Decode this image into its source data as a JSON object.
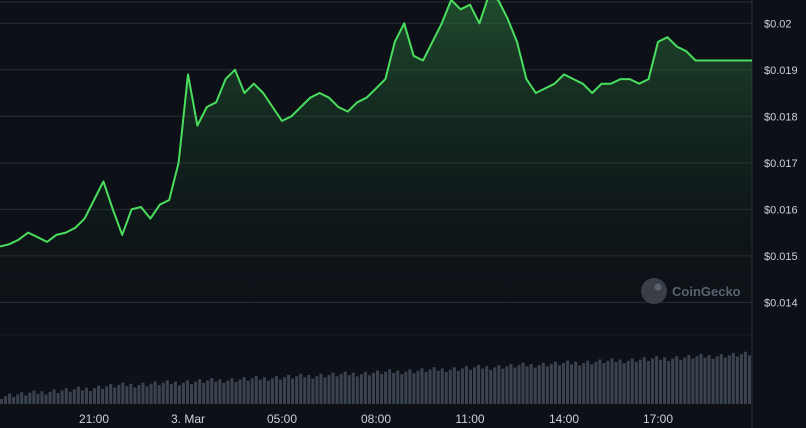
{
  "chart_data": {
    "type": "line",
    "title": "",
    "xlabel": "",
    "ylabel": "",
    "x_ticks": [
      "21:00",
      "3. Mar",
      "05:00",
      "08:00",
      "11:00",
      "14:00",
      "17:00"
    ],
    "y_ticks": [
      0.014,
      0.015,
      0.016,
      0.017,
      0.018,
      0.019,
      0.02
    ],
    "y_tick_labels": [
      "$0.014",
      "$0.015",
      "$0.016",
      "$0.017",
      "$0.018",
      "$0.019",
      "$0.02"
    ],
    "ylim": [
      0.01375,
      0.0205
    ],
    "xlim": [
      0,
      24
    ],
    "grid": true,
    "legend": "none",
    "series": [
      {
        "x": [
          0,
          0.3,
          0.6,
          0.9,
          1.2,
          1.5,
          1.8,
          2.1,
          2.4,
          2.7,
          3.0,
          3.3,
          3.6,
          3.9,
          4.2,
          4.5,
          4.8,
          5.1,
          5.4,
          5.7,
          6.0,
          6.3,
          6.6,
          6.9,
          7.2,
          7.5,
          7.8,
          8.1,
          8.4,
          8.7,
          9.0,
          9.3,
          9.6,
          9.9,
          10.2,
          10.5,
          10.8,
          11.1,
          11.4,
          11.7,
          12.0,
          12.3,
          12.6,
          12.9,
          13.2,
          13.5,
          13.8,
          14.1,
          14.4,
          14.7,
          15.0,
          15.3,
          15.6,
          15.9,
          16.2,
          16.5,
          16.8,
          17.1,
          17.4,
          17.7,
          18.0,
          18.3,
          18.6,
          18.9,
          19.2,
          19.5,
          19.8,
          20.1,
          20.4,
          20.7,
          21.0,
          21.3,
          21.6,
          21.9,
          22.2,
          22.5,
          22.8,
          23.1,
          23.4,
          23.7,
          24.0
        ],
        "values": [
          0.0152,
          0.01525,
          0.01535,
          0.0155,
          0.0154,
          0.0153,
          0.01545,
          0.0155,
          0.0156,
          0.0158,
          0.0162,
          0.0166,
          0.016,
          0.01545,
          0.016,
          0.01605,
          0.0158,
          0.0161,
          0.0162,
          0.017,
          0.0189,
          0.0178,
          0.0182,
          0.0183,
          0.0188,
          0.019,
          0.0185,
          0.0187,
          0.0185,
          0.0182,
          0.0179,
          0.018,
          0.0182,
          0.0184,
          0.0185,
          0.0184,
          0.0182,
          0.0181,
          0.0183,
          0.0184,
          0.0186,
          0.0188,
          0.0196,
          0.02,
          0.0193,
          0.0192,
          0.0196,
          0.02,
          0.0205,
          0.0203,
          0.0204,
          0.02,
          0.0206,
          0.0205,
          0.0201,
          0.0196,
          0.0188,
          0.0185,
          0.0186,
          0.0187,
          0.0189,
          0.0188,
          0.0187,
          0.0185,
          0.0187,
          0.0187,
          0.0188,
          0.0188,
          0.0187,
          0.0188,
          0.0196,
          0.0197,
          0.0195,
          0.0194,
          0.0192,
          0.0192,
          0.0192,
          0.0192,
          0.0192,
          0.0192,
          0.0192
        ]
      }
    ],
    "volume_series": {
      "values": [
        8,
        8.5,
        9,
        9.5,
        10,
        10,
        10.5,
        11,
        11,
        11.5,
        12,
        12.5,
        13,
        13.2,
        13.5,
        13.8,
        14,
        14.2,
        14.5,
        14.8,
        15,
        15.5,
        16,
        16.5,
        17,
        17.5,
        18,
        18.2,
        18.5,
        18.8,
        19,
        19.2,
        19.4,
        19.6,
        19.8,
        20,
        20.2,
        20.4,
        20.6,
        20.8,
        21,
        21.2,
        21.4,
        21.6,
        21.8,
        22,
        22.2,
        22.4,
        22.6,
        22.8,
        23,
        23.2,
        23.4,
        23.6,
        23.8,
        24,
        24.2,
        24.4,
        24.6,
        24.8,
        25,
        25.2,
        25.4,
        25.6,
        25.8,
        26,
        26.2,
        26.4,
        26.6,
        26.8,
        27,
        27.2,
        27.4,
        27.6,
        27.8,
        28,
        28.2,
        28.4,
        28.6,
        28.8,
        29,
        29.2,
        29.4,
        29.6,
        29.8,
        30,
        30.2,
        30.4,
        30.6,
        30.8,
        31,
        31.2,
        31.4,
        31.6,
        31.8,
        32,
        32.2,
        32.4,
        32.6,
        32.8,
        33,
        33.2,
        33.4,
        33.6,
        33.8,
        34,
        34.2,
        34.4,
        34.6,
        34.8,
        35,
        35.2,
        35.4,
        35.6,
        35.8,
        36,
        36.2,
        36.4,
        36.6,
        36.8,
        37,
        37.2,
        37.4,
        37.6,
        37.8,
        38,
        38.2,
        38.4,
        38.6,
        38.8,
        39,
        39.2,
        39.4,
        39.6,
        39.8,
        40,
        40.2,
        40.4,
        40.6,
        40.8,
        41,
        41.2,
        41.4,
        41.6,
        41.8,
        42,
        42.2,
        42.4,
        42.6,
        42.8,
        43,
        43.2,
        43.4,
        43.6,
        43.8,
        44,
        44.2,
        44.4,
        44.6,
        44.8,
        45,
        45.2,
        45.4,
        45.6,
        45.8,
        46,
        46.2,
        46.4,
        46.6,
        46.8,
        47,
        47.2,
        47.4,
        47.6,
        47.8,
        48,
        48.2,
        48.4,
        48.6,
        48.8,
        49,
        49.2,
        49.4,
        49.6,
        49.8,
        50
      ],
      "max": 60
    },
    "x_tick_positions": [
      3,
      6,
      9,
      12,
      15,
      18,
      21
    ]
  },
  "watermark": {
    "text": "CoinGecko",
    "icon": "coingecko-logo-icon"
  },
  "colors": {
    "background": "#0d1117",
    "line": "#4ade5e",
    "area_top": "#2e7d3e",
    "grid": "#2a2f36",
    "volume": "#3b4350",
    "text": "#c9d1d9"
  }
}
